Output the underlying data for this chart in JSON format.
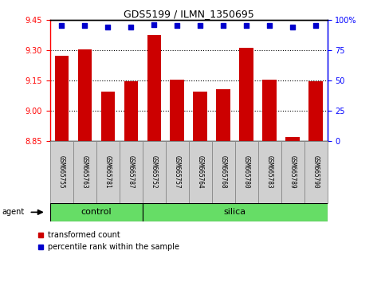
{
  "title": "GDS5199 / ILMN_1350695",
  "samples": [
    "GSM665755",
    "GSM665763",
    "GSM665781",
    "GSM665787",
    "GSM665752",
    "GSM665757",
    "GSM665764",
    "GSM665768",
    "GSM665780",
    "GSM665783",
    "GSM665789",
    "GSM665790"
  ],
  "bar_values": [
    9.27,
    9.305,
    9.095,
    9.145,
    9.375,
    9.155,
    9.095,
    9.105,
    9.31,
    9.155,
    8.87,
    9.145
  ],
  "percentile_values": [
    95,
    95,
    94,
    94,
    96,
    95,
    95,
    95,
    95,
    95,
    94,
    95
  ],
  "bar_color": "#cc0000",
  "percentile_color": "#0000cc",
  "ylim_left": [
    8.85,
    9.45
  ],
  "ylim_right": [
    0,
    100
  ],
  "yticks_left": [
    8.85,
    9.0,
    9.15,
    9.3,
    9.45
  ],
  "yticks_right": [
    0,
    25,
    50,
    75,
    100
  ],
  "ytick_labels_right": [
    "0",
    "25",
    "50",
    "75",
    "100%"
  ],
  "hlines": [
    9.0,
    9.15,
    9.3
  ],
  "ctrl_count": 4,
  "silica_count": 8,
  "agent_label": "agent",
  "bar_width": 0.6,
  "legend_bar_label": "transformed count",
  "legend_dot_label": "percentile rank within the sample",
  "background_color": "#ffffff",
  "label_box_color": "#d0d0d0",
  "green_color": "#66dd66"
}
